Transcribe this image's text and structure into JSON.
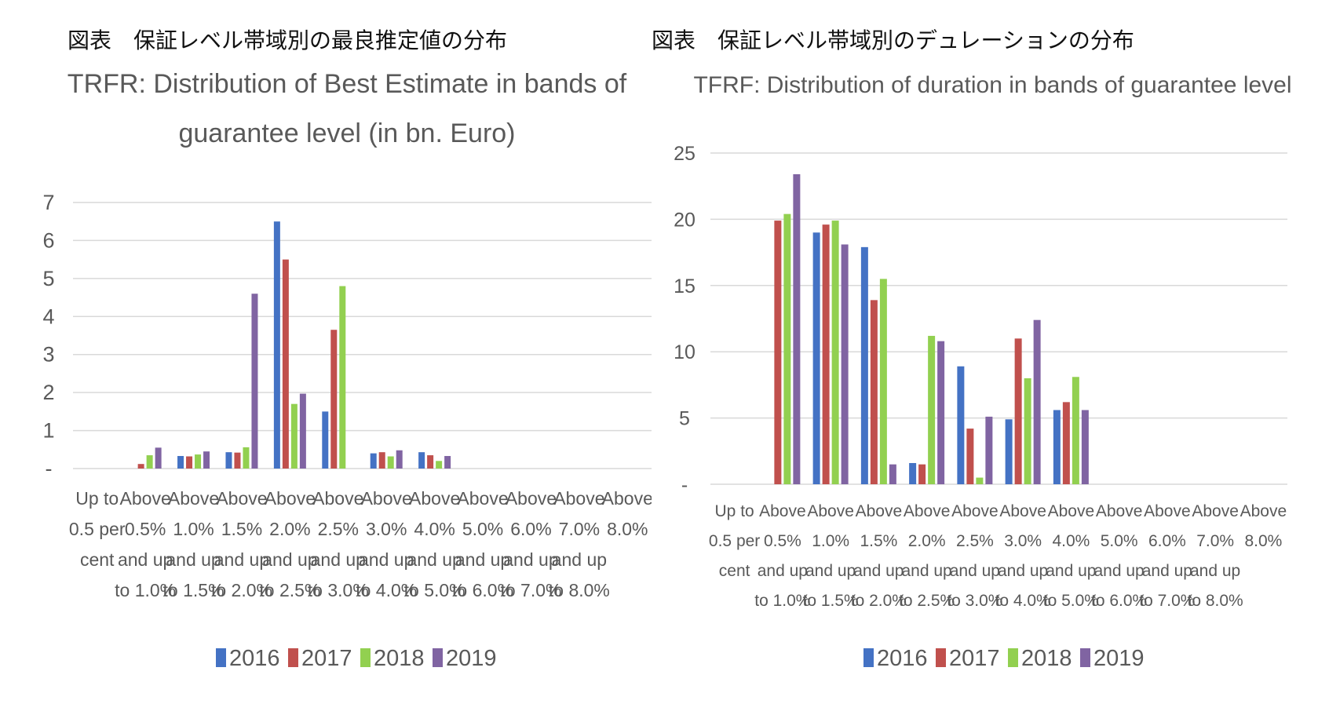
{
  "colors": {
    "2016": "#4472C4",
    "2017": "#C0504D",
    "2018": "#92D050",
    "2019": "#8064A2",
    "grid": "#D9D9D9",
    "text": "#595959"
  },
  "chart_data": [
    {
      "type": "bar",
      "heading": "図表　保証レベル帯域別の最良推定値の分布",
      "title_lines": [
        "TRFR: Distribution of Best Estimate in bands of",
        "guarantee level (in bn. Euro)"
      ],
      "ylim": [
        0,
        7
      ],
      "yticks": [
        "-",
        "1",
        "2",
        "3",
        "4",
        "5",
        "6",
        "7"
      ],
      "category_lines": [
        [
          "Up to",
          "0.5 per",
          "cent"
        ],
        [
          "Above",
          "0.5%",
          "and up",
          "to 1.0%"
        ],
        [
          "Above",
          "1.0%",
          "and up",
          "to 1.5%"
        ],
        [
          "Above",
          "1.5%",
          "and up",
          "to 2.0%"
        ],
        [
          "Above",
          "2.0%",
          "and up",
          "to 2.5%"
        ],
        [
          "Above",
          "2.5%",
          "and up",
          "to 3.0%"
        ],
        [
          "Above",
          "3.0%",
          "and up",
          "to 4.0%"
        ],
        [
          "Above",
          "4.0%",
          "and up",
          "to 5.0%"
        ],
        [
          "Above",
          "5.0%",
          "and up",
          "to 6.0%"
        ],
        [
          "Above",
          "6.0%",
          "and up",
          "to 7.0%"
        ],
        [
          "Above",
          "7.0%",
          "and up",
          "to 8.0%"
        ],
        [
          "Above",
          "8.0%"
        ]
      ],
      "series": [
        {
          "name": "2016",
          "values": [
            0,
            0,
            0.33,
            0.43,
            6.5,
            1.5,
            0.4,
            0.43,
            0,
            0,
            0,
            0
          ]
        },
        {
          "name": "2017",
          "values": [
            0,
            0.12,
            0.32,
            0.42,
            5.5,
            3.65,
            0.43,
            0.35,
            0,
            0,
            0,
            0
          ]
        },
        {
          "name": "2018",
          "values": [
            0,
            0.35,
            0.37,
            0.56,
            1.7,
            4.8,
            0.32,
            0.2,
            0,
            0,
            0,
            0
          ]
        },
        {
          "name": "2019",
          "values": [
            0,
            0.55,
            0.45,
            4.6,
            1.97,
            0,
            0.48,
            0.33,
            0,
            0,
            0,
            0
          ]
        }
      ]
    },
    {
      "type": "bar",
      "heading": "図表　保証レベル帯域別のデュレーションの分布",
      "title_lines": [
        "TFRF: Distribution of duration in bands of guarantee level"
      ],
      "ylim": [
        0,
        25
      ],
      "yticks": [
        "-",
        "5",
        "10",
        "15",
        "20",
        "25"
      ],
      "category_lines": [
        [
          "Up to",
          "0.5 per",
          "cent"
        ],
        [
          "Above",
          "0.5%",
          "and up",
          "to 1.0%"
        ],
        [
          "Above",
          "1.0%",
          "and up",
          "to 1.5%"
        ],
        [
          "Above",
          "1.5%",
          "and up",
          "to 2.0%"
        ],
        [
          "Above",
          "2.0%",
          "and up",
          "to 2.5%"
        ],
        [
          "Above",
          "2.5%",
          "and up",
          "to 3.0%"
        ],
        [
          "Above",
          "3.0%",
          "and up",
          "to 4.0%"
        ],
        [
          "Above",
          "4.0%",
          "and up",
          "to 5.0%"
        ],
        [
          "Above",
          "5.0%",
          "and up",
          "to 6.0%"
        ],
        [
          "Above",
          "6.0%",
          "and up",
          "to 7.0%"
        ],
        [
          "Above",
          "7.0%",
          "and up",
          "to 8.0%"
        ],
        [
          "Above",
          "8.0%"
        ]
      ],
      "series": [
        {
          "name": "2016",
          "values": [
            0,
            0,
            19,
            17.9,
            1.6,
            8.9,
            4.9,
            5.6,
            0,
            0,
            0,
            0
          ]
        },
        {
          "name": "2017",
          "values": [
            0,
            19.9,
            19.6,
            13.9,
            1.5,
            4.2,
            11,
            6.2,
            0,
            0,
            0,
            0
          ]
        },
        {
          "name": "2018",
          "values": [
            0,
            20.4,
            19.9,
            15.5,
            11.2,
            0.5,
            8,
            8.1,
            0,
            0,
            0,
            0
          ]
        },
        {
          "name": "2019",
          "values": [
            0,
            23.4,
            18.1,
            1.5,
            10.8,
            5.1,
            12.4,
            5.6,
            0,
            0,
            0,
            0
          ]
        }
      ]
    }
  ]
}
